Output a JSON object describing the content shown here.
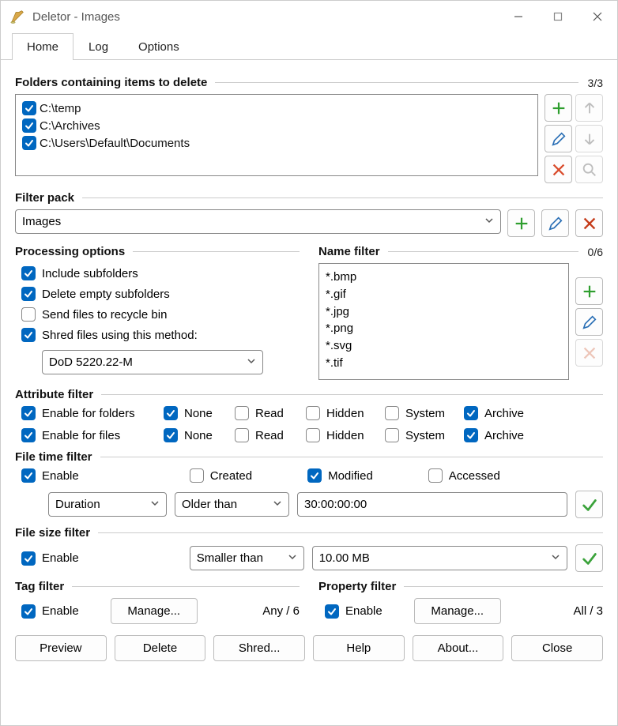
{
  "window": {
    "title": "Deletor - Images"
  },
  "tabs": {
    "home": "Home",
    "log": "Log",
    "options": "Options",
    "active": "home"
  },
  "folders": {
    "title": "Folders containing items to delete",
    "count": "3/3",
    "items": [
      {
        "checked": true,
        "path": "C:\\temp"
      },
      {
        "checked": true,
        "path": "C:\\Archives"
      },
      {
        "checked": true,
        "path": "C:\\Users\\Default\\Documents"
      }
    ]
  },
  "filterpack": {
    "title": "Filter pack",
    "value": "Images"
  },
  "processing": {
    "title": "Processing options",
    "include_subfolders": {
      "checked": true,
      "label": "Include subfolders"
    },
    "delete_empty": {
      "checked": true,
      "label": "Delete empty subfolders"
    },
    "recycle": {
      "checked": false,
      "label": "Send files to recycle bin"
    },
    "shred": {
      "checked": true,
      "label": "Shred files using this method:"
    },
    "shred_method": "DoD 5220.22-M"
  },
  "namefilter": {
    "title": "Name filter",
    "count": "0/6",
    "items": [
      "*.bmp",
      "*.gif",
      "*.jpg",
      "*.png",
      "*.svg",
      "*.tif"
    ]
  },
  "attribute": {
    "title": "Attribute filter",
    "labels": {
      "enable_folders": "Enable for folders",
      "enable_files": "Enable for files",
      "none": "None",
      "read": "Read",
      "hidden": "Hidden",
      "system": "System",
      "archive": "Archive"
    },
    "row_folders": {
      "enable": true,
      "none": true,
      "read": false,
      "hidden": false,
      "system": false,
      "archive": true
    },
    "row_files": {
      "enable": true,
      "none": true,
      "read": false,
      "hidden": false,
      "system": false,
      "archive": true
    }
  },
  "filetime": {
    "title": "File time filter",
    "enable": {
      "checked": true,
      "label": "Enable"
    },
    "created": {
      "checked": false,
      "label": "Created"
    },
    "modified": {
      "checked": true,
      "label": "Modified"
    },
    "accessed": {
      "checked": false,
      "label": "Accessed"
    },
    "mode": "Duration",
    "relation": "Older than",
    "value": "30:00:00:00"
  },
  "filesize": {
    "title": "File size filter",
    "enable": {
      "checked": true,
      "label": "Enable"
    },
    "relation": "Smaller than",
    "value": "10.00 MB"
  },
  "tagfilter": {
    "title": "Tag filter",
    "enable": {
      "checked": true,
      "label": "Enable"
    },
    "manage": "Manage...",
    "summary": "Any / 6"
  },
  "propfilter": {
    "title": "Property filter",
    "enable": {
      "checked": true,
      "label": "Enable"
    },
    "manage": "Manage...",
    "summary": "All / 3"
  },
  "footer": {
    "preview": "Preview",
    "delete": "Delete",
    "shred": "Shred...",
    "help": "Help",
    "about": "About...",
    "close": "Close"
  },
  "colors": {
    "accent": "#0067c0",
    "add": "#2e9e2e",
    "delete": "#d94b2b",
    "edit": "#2a6fb5",
    "check_green": "#3aa23a"
  }
}
